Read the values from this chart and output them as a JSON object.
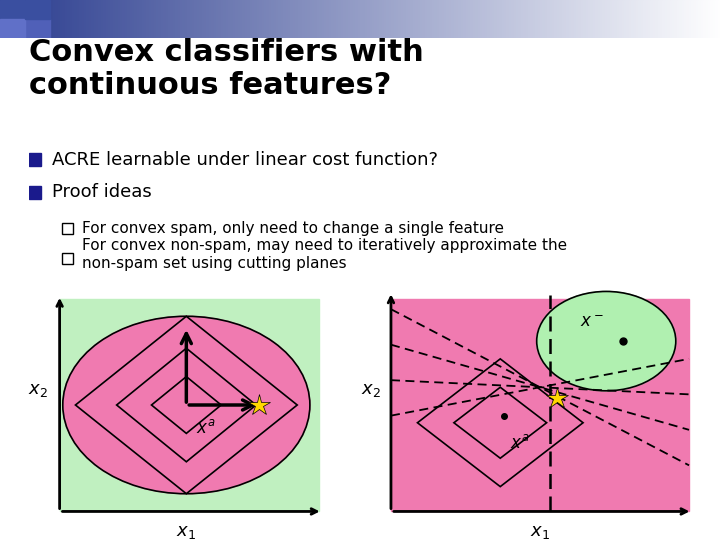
{
  "title": "Convex classifiers with\ncontinuous features?",
  "bullet1": "ACRE learnable under linear cost function?",
  "bullet2": "Proof ideas",
  "sub1": "For convex spam, only need to change a single feature",
  "sub2": "For convex non-spam, may need to iteratively approximate the\nnon-spam set using cutting planes",
  "bg_color": "#ffffff",
  "green_bg": "#c0f0c0",
  "pink_bg": "#f07ab0",
  "light_green_ellipse": "#b0f0b0",
  "title_fontsize": 22,
  "bullet_fontsize": 13,
  "sub_fontsize": 11,
  "sq_color": "#1a1a8c"
}
